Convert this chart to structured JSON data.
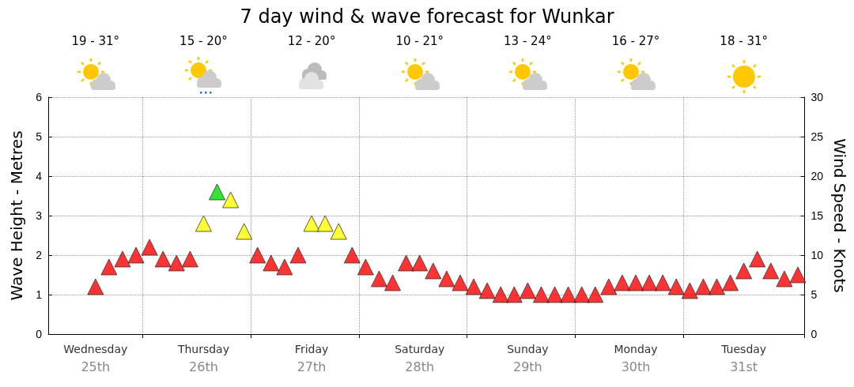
{
  "chart_data": {
    "type": "scatter",
    "title": "7 day wind & wave forecast for Wunkar",
    "ylabel": "Wave Height - Metres",
    "y2label": "Wind Speed - Knots",
    "annotations": [
      "19 - 31°",
      "15 - 20°",
      "12 - 20°",
      "10 - 21°",
      "13 - 24°",
      "16 - 27°",
      "18 - 31°"
    ],
    "categories": [
      null,
      null,
      null,
      "Wednesday\n25th",
      null,
      null,
      null,
      null,
      null,
      null,
      null,
      "Thursday\n26th",
      null,
      null,
      null,
      null,
      null,
      null,
      null,
      "Friday\n27th",
      null,
      null,
      null,
      null,
      null,
      null,
      null,
      "Saturday\n28th",
      null,
      null,
      null,
      null,
      null,
      null,
      null,
      "Sunday\n29th",
      null,
      null,
      null,
      null,
      null,
      null,
      null,
      "Monday\n30th",
      null,
      null,
      null,
      null,
      null,
      null,
      null,
      "Tuesday\n31st",
      null,
      null,
      null,
      null
    ],
    "series": [
      {
        "axis": "y2",
        "values": [
          null,
          null,
          null,
          6,
          8.5,
          9.5,
          10,
          11,
          9.5,
          9,
          9.5,
          14,
          18,
          17,
          13,
          10,
          9,
          8.5,
          10,
          14,
          14,
          13,
          10,
          8.5,
          7,
          6.5,
          9,
          9,
          8,
          7,
          6.5,
          6,
          5.5,
          5,
          5,
          5.5,
          5,
          5,
          5,
          5,
          5,
          6,
          6.5,
          6.5,
          6.5,
          6.5,
          6,
          5.5,
          6,
          6,
          6.5,
          8,
          9.5,
          8,
          7,
          7.5
        ],
        "colors": [
          null,
          null,
          null,
          "#ff0000",
          "#ff0000",
          "#ff0000",
          "#ff0000",
          "#ff0000",
          "#ff0000",
          "#ff0000",
          "#ff0000",
          "#ffff00",
          "#00dd00",
          "#ffff00",
          "#ffff00",
          "#ff0000",
          "#ff0000",
          "#ff0000",
          "#ff0000",
          "#ffff00",
          "#ffff00",
          "#ffff00",
          "#ff0000",
          "#ff0000",
          "#ff0000",
          "#ff0000",
          "#ff0000",
          "#ff0000",
          "#ff0000",
          "#ff0000",
          "#ff0000",
          "#ff0000",
          "#ff0000",
          "#ff0000",
          "#ff0000",
          "#ff0000",
          "#ff0000",
          "#ff0000",
          "#ff0000",
          "#ff0000",
          "#ff0000",
          "#ff0000",
          "#ff0000",
          "#ff0000",
          "#ff0000",
          "#ff0000",
          "#ff0000",
          "#ff0000",
          "#ff0000",
          "#ff0000",
          "#ff0000",
          "#ff0000",
          "#ff0000",
          "#ff0000",
          "#ff0000",
          "#ff0000"
        ]
      }
    ],
    "ylim": [
      0,
      6
    ],
    "yticks": [
      0,
      1,
      2,
      3,
      4,
      5,
      6
    ],
    "y2lim": [
      0,
      30
    ],
    "y2ticks": [
      0,
      5,
      10,
      15,
      20,
      25,
      30
    ],
    "grid": true,
    "marker": "triangle"
  }
}
